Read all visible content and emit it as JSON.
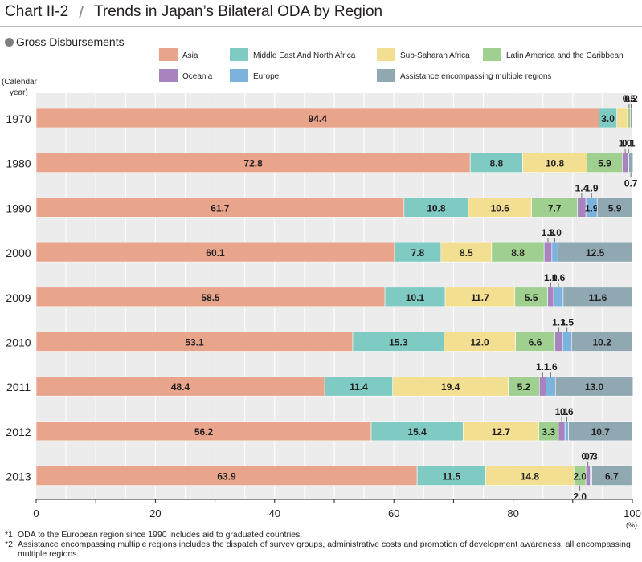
{
  "header": {
    "chart_id": "Chart II-2",
    "title": "Trends in Japan’s Bilateral ODA by Region"
  },
  "subtitle": "Gross Disbursements",
  "footnotes": [
    {
      "mark": "*1",
      "text": "ODA to the European region since 1990 includes aid to graduated countries."
    },
    {
      "mark": "*2",
      "text": "Assistance encompassing multiple regions includes the dispatch of survey groups, administrative costs and promotion of development awareness, all encompassing multiple regions."
    }
  ],
  "chart_data": {
    "type": "bar",
    "orientation": "horizontal",
    "stacked": true,
    "title": "Trends in Japan’s Bilateral ODA by Region",
    "ylabel": "(Calendar year)",
    "xunit": "(%)",
    "xlim": [
      0,
      100
    ],
    "xticks": [
      0,
      20,
      40,
      60,
      80,
      100
    ],
    "grid": true,
    "legend_position": "top",
    "categories": [
      "1970",
      "1980",
      "1990",
      "2000",
      "2009",
      "2010",
      "2011",
      "2012",
      "2013"
    ],
    "series": [
      {
        "name": "Asia",
        "color": "#e9a48c",
        "values": [
          94.4,
          72.8,
          61.7,
          60.1,
          58.5,
          53.1,
          48.4,
          56.2,
          63.9
        ]
      },
      {
        "name": "Middle East And North Africa",
        "color": "#7fcac3",
        "values": [
          3.0,
          8.8,
          10.8,
          7.8,
          10.1,
          15.3,
          11.4,
          15.4,
          11.5
        ]
      },
      {
        "name": "Sub-Saharan Africa",
        "color": "#f2df92",
        "values": [
          1.8,
          10.8,
          10.6,
          8.5,
          11.7,
          12.0,
          19.4,
          12.7,
          14.8
        ]
      },
      {
        "name": "Latin America and the Caribbean",
        "color": "#9fd08f",
        "values": [
          0.5,
          5.9,
          7.7,
          8.8,
          5.5,
          6.6,
          5.2,
          3.3,
          2.0
        ]
      },
      {
        "name": "Oceania",
        "color": "#a784bd",
        "values": [
          0.2,
          1.0,
          1.4,
          1.3,
          1.0,
          1.3,
          1.1,
          1.1,
          0.7
        ]
      },
      {
        "name": "Europe",
        "color": "#7cb3dd",
        "values": [
          0.0,
          0.1,
          1.9,
          1.0,
          1.6,
          1.5,
          1.6,
          0.6,
          0.3
        ]
      },
      {
        "name": "Assistance encompassing multiple regions",
        "color": "#90a8b1",
        "values": [
          0.0,
          0.7,
          5.9,
          12.5,
          11.6,
          10.2,
          13.0,
          10.7,
          6.7
        ]
      }
    ],
    "annotations": [
      {
        "year": "1970",
        "series": "Latin America and the Caribbean",
        "text": "0.5",
        "pos": "above"
      },
      {
        "year": "1970",
        "series": "Oceania",
        "text": "0.2",
        "pos": "above"
      },
      {
        "year": "1980",
        "series": "Europe",
        "text": "0.1",
        "pos": "above"
      },
      {
        "year": "1980",
        "series": "Oceania",
        "text": "1.0",
        "pos": "above"
      },
      {
        "year": "1980",
        "series": "Assistance encompassing multiple regions",
        "text": "0.7",
        "pos": "below"
      },
      {
        "year": "1990",
        "series": "Oceania",
        "text": "1.4",
        "pos": "above"
      },
      {
        "year": "1990",
        "series": "Europe",
        "text": "1.9",
        "pos": "above"
      },
      {
        "year": "2000",
        "series": "Oceania",
        "text": "1.3",
        "pos": "above"
      },
      {
        "year": "2000",
        "series": "Europe",
        "text": "1.0",
        "pos": "above"
      },
      {
        "year": "2009",
        "series": "Oceania",
        "text": "1.0",
        "pos": "above"
      },
      {
        "year": "2009",
        "series": "Europe",
        "text": "1.6",
        "pos": "above"
      },
      {
        "year": "2010",
        "series": "Oceania",
        "text": "1.3",
        "pos": "above"
      },
      {
        "year": "2010",
        "series": "Europe",
        "text": "1.5",
        "pos": "above"
      },
      {
        "year": "2011",
        "series": "Oceania",
        "text": "1.1",
        "pos": "above"
      },
      {
        "year": "2011",
        "series": "Europe",
        "text": "1.6",
        "pos": "above"
      },
      {
        "year": "2012",
        "series": "Oceania",
        "text": "1.1",
        "pos": "above"
      },
      {
        "year": "2012",
        "series": "Europe",
        "text": "0.6",
        "pos": "above"
      },
      {
        "year": "2013",
        "series": "Oceania",
        "text": "0.7",
        "pos": "above"
      },
      {
        "year": "2013",
        "series": "Europe",
        "text": "0.3",
        "pos": "above"
      },
      {
        "year": "2013",
        "series": "Latin America and the Caribbean",
        "text": "2.0",
        "pos": "below"
      }
    ]
  }
}
